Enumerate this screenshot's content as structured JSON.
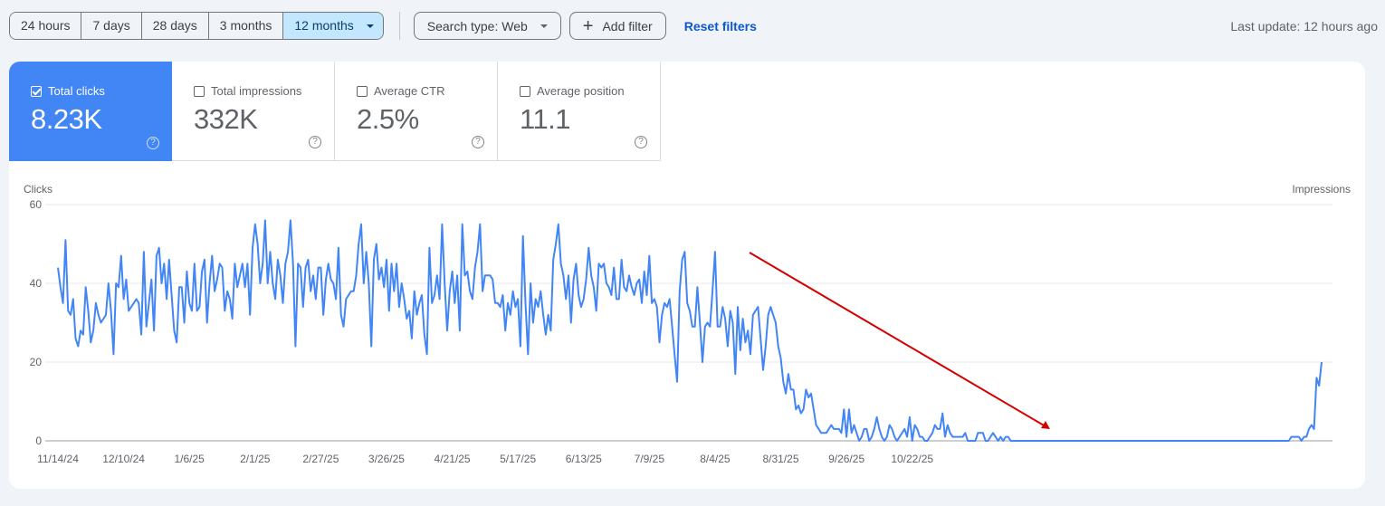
{
  "toolbar": {
    "ranges": [
      {
        "label": "24 hours",
        "active": false
      },
      {
        "label": "7 days",
        "active": false
      },
      {
        "label": "28 days",
        "active": false
      },
      {
        "label": "3 months",
        "active": false
      },
      {
        "label": "12 months",
        "active": true
      }
    ],
    "search_type": "Search type: Web",
    "add_filter": "Add filter",
    "add_filter_icon": "plus-icon",
    "reset_filters": "Reset filters",
    "last_update": "Last update: 12 hours ago"
  },
  "metrics": [
    {
      "label": "Total clicks",
      "value": "8.23K",
      "checked": true,
      "color": "#4285f4"
    },
    {
      "label": "Total impressions",
      "value": "332K",
      "checked": false
    },
    {
      "label": "Average CTR",
      "value": "2.5%",
      "checked": false
    },
    {
      "label": "Average position",
      "value": "11.1",
      "checked": false
    }
  ],
  "help_icon": "?",
  "colors": {
    "accent": "#4285f4",
    "line": "#4285f4",
    "annotation_arrow": "#d50000",
    "selected_range": "#c2e7ff",
    "link": "#0b57d0"
  },
  "chart_data": {
    "type": "line",
    "title": "Total clicks",
    "ylabel": "Clicks",
    "ylabel_right": "Impressions",
    "xlabel": "",
    "ylim": [
      0,
      60
    ],
    "yticks": [
      0,
      20,
      40,
      60
    ],
    "grid": true,
    "legend": "none",
    "x_tick_labels": [
      "11/14/24",
      "12/10/24",
      "1/6/25",
      "2/1/25",
      "2/27/25",
      "3/26/25",
      "4/21/25",
      "5/17/25",
      "6/13/25",
      "7/9/25",
      "8/4/25",
      "8/31/25",
      "9/26/25",
      "10/22/25"
    ],
    "x_range": [
      "11/14/24",
      "11/13/25"
    ],
    "annotation": {
      "type": "arrow",
      "color": "#d50000",
      "from_date": "~6/4/25",
      "from_value": 48,
      "to_date": "~8/31/25",
      "to_value": 3
    },
    "series": [
      {
        "name": "Clicks",
        "color": "#4285f4",
        "values": [
          44,
          39,
          35,
          51,
          33,
          32,
          36,
          26,
          24,
          28,
          27,
          39,
          33,
          25,
          28,
          35,
          32,
          30,
          31,
          32,
          40,
          33,
          22,
          40,
          39,
          47,
          36,
          41,
          33,
          34,
          35,
          36,
          35,
          27,
          48,
          29,
          35,
          41,
          28,
          47,
          49,
          40,
          45,
          36,
          46,
          37,
          28,
          25,
          39,
          39,
          30,
          43,
          35,
          33,
          45,
          33,
          34,
          43,
          46,
          30,
          40,
          47,
          38,
          41,
          45,
          44,
          33,
          38,
          36,
          31,
          45,
          39,
          42,
          45,
          39,
          45,
          32,
          49,
          55,
          50,
          40,
          45,
          56,
          40,
          48,
          40,
          36,
          46,
          42,
          35,
          45,
          48,
          56,
          45,
          24,
          45,
          44,
          34,
          44,
          46,
          38,
          42,
          36,
          44,
          44,
          32,
          41,
          45,
          41,
          40,
          36,
          49,
          32,
          29,
          36,
          37,
          38,
          38,
          42,
          50,
          55,
          40,
          48,
          40,
          24,
          46,
          50,
          41,
          44,
          39,
          46,
          33,
          45,
          38,
          45,
          34,
          40,
          36,
          31,
          33,
          26,
          38,
          32,
          35,
          37,
          27,
          22,
          49,
          35,
          37,
          42,
          36,
          55,
          40,
          28,
          38,
          43,
          35,
          42,
          28,
          55,
          42,
          43,
          38,
          36,
          44,
          48,
          55,
          38,
          42,
          42,
          42,
          41,
          35,
          35,
          34,
          37,
          28,
          35,
          32,
          38,
          34,
          36,
          24,
          52,
          35,
          22,
          40,
          30,
          36,
          34,
          38,
          32,
          27,
          32,
          28,
          46,
          50,
          55,
          45,
          42,
          36,
          42,
          30,
          41,
          45,
          37,
          34,
          36,
          41,
          49,
          42,
          39,
          33,
          45,
          44,
          45,
          40,
          39,
          37,
          44,
          36,
          36,
          46,
          39,
          38,
          42,
          39,
          37,
          40,
          41,
          35,
          43,
          37,
          47,
          35,
          36,
          34,
          25,
          32,
          35,
          34,
          36,
          29,
          22,
          15,
          38,
          46,
          48,
          35,
          33,
          29,
          29,
          39,
          30,
          20,
          29,
          30,
          29,
          38,
          48,
          29,
          29,
          34,
          31,
          24,
          33,
          30,
          17,
          34,
          23,
          31,
          25,
          28,
          22,
          32,
          33,
          34,
          26,
          18,
          24,
          32,
          34,
          32,
          30,
          24,
          21,
          15,
          12,
          17,
          13,
          13,
          8,
          9,
          7,
          8,
          13,
          11,
          12,
          8,
          4,
          3,
          2,
          2,
          2,
          3,
          4,
          3,
          3,
          3,
          2,
          8,
          1,
          8,
          2,
          4,
          2,
          0,
          1,
          3,
          3,
          0,
          1,
          3,
          6,
          3,
          1,
          0,
          1,
          4,
          3,
          1,
          0,
          1,
          2,
          3,
          1,
          6,
          0,
          4,
          3,
          1,
          1,
          0,
          0,
          1,
          2,
          4,
          3,
          3,
          7,
          1,
          4,
          2,
          1,
          1,
          1,
          1,
          1,
          2,
          0,
          0,
          0,
          0,
          2,
          2,
          2,
          0,
          0,
          1,
          2,
          1,
          0,
          1,
          0,
          1,
          1,
          0,
          0,
          0,
          0,
          0,
          0,
          0,
          0,
          0,
          0,
          0,
          0,
          0,
          0,
          0,
          0,
          0,
          0,
          0,
          0,
          0,
          0,
          0,
          0,
          0,
          0,
          0,
          0,
          0,
          0,
          0,
          0,
          0,
          0,
          0,
          0,
          0,
          0,
          0,
          0,
          0,
          0,
          0,
          0,
          0,
          0,
          0,
          0,
          0,
          0,
          0,
          0,
          0,
          0,
          0,
          0,
          0,
          0,
          0,
          0,
          0,
          0,
          0,
          0,
          0,
          0,
          0,
          0,
          0,
          0,
          0,
          0,
          0,
          0,
          0,
          0,
          0,
          0,
          0,
          0,
          0,
          0,
          0,
          0,
          0,
          0,
          0,
          0,
          0,
          0,
          0,
          0,
          0,
          0,
          0,
          0,
          0,
          0,
          0,
          0,
          0,
          0,
          0,
          0,
          0,
          0,
          0,
          0,
          0,
          0,
          0,
          1,
          1,
          1,
          1,
          0,
          1,
          1,
          3,
          4,
          3,
          16,
          14,
          20
        ]
      }
    ]
  }
}
